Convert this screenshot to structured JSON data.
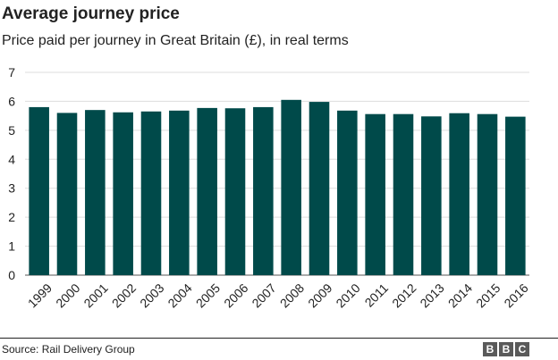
{
  "chart_data": {
    "type": "bar",
    "title": "Average journey price",
    "subtitle": "Price paid per journey in Great Britain (£), in real terms",
    "xlabel": "",
    "ylabel": "",
    "categories": [
      "1999",
      "2000",
      "2001",
      "2002",
      "2003",
      "2004",
      "2005",
      "2006",
      "2007",
      "2008",
      "2009",
      "2010",
      "2011",
      "2012",
      "2013",
      "2014",
      "2015",
      "2016"
    ],
    "values": [
      5.8,
      5.6,
      5.7,
      5.62,
      5.65,
      5.68,
      5.77,
      5.76,
      5.8,
      6.05,
      5.98,
      5.68,
      5.56,
      5.56,
      5.48,
      5.59,
      5.56,
      5.47
    ],
    "ylim": [
      0,
      7
    ],
    "yticks": [
      "0",
      "1",
      "2",
      "3",
      "4",
      "5",
      "6",
      "7"
    ],
    "grid": true,
    "bar_color": "#004a4a"
  },
  "footer": {
    "source": "Source: Rail Delivery Group",
    "logo_letters": [
      "B",
      "B",
      "C"
    ]
  }
}
